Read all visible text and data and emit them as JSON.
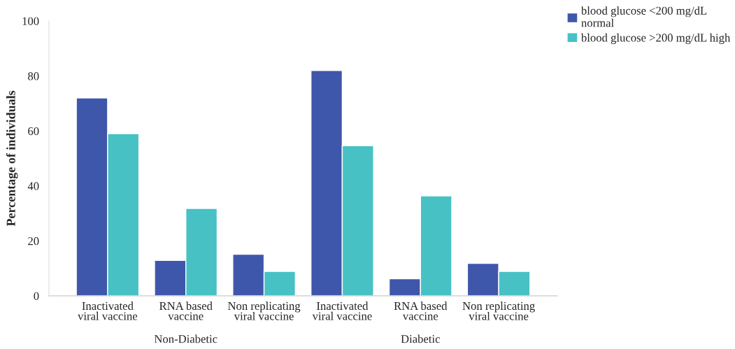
{
  "chart_data": {
    "type": "bar",
    "ylabel": "Percentage of individuals",
    "categories": [
      "Inactivated\nviral vaccine",
      "RNA based\nvaccine",
      "Non replicating\nviral vaccine",
      "Inactivated\nviral vaccine",
      "RNA based\nvaccine",
      "Non replicating\nviral vaccine"
    ],
    "series": [
      {
        "name": "blood glucose <200 mg/dL\nnormal",
        "color": "#3f57aa",
        "values": [
          72,
          12.9,
          15.1,
          82,
          6.2,
          11.8
        ]
      },
      {
        "name": "blood glucose >200 mg/dL high",
        "color": "#48c1c5",
        "values": [
          59,
          31.8,
          8.9,
          54.6,
          36.4,
          8.9
        ]
      }
    ],
    "ylim": [
      0,
      100
    ],
    "yticks": [
      0,
      20,
      40,
      60,
      80,
      100
    ],
    "annotations": [
      "Non-Diabetic",
      "Diabetic"
    ],
    "grid": false,
    "legend": "top right"
  }
}
